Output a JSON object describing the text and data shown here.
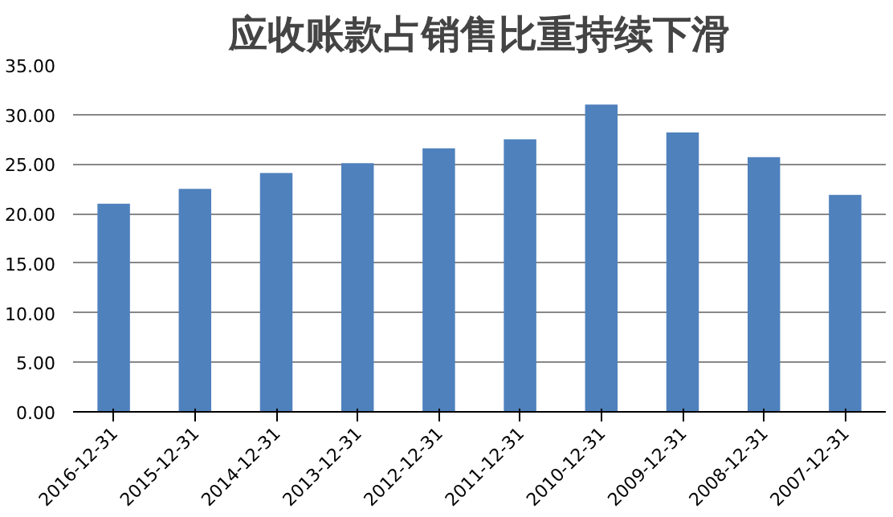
{
  "chart_data": {
    "type": "bar",
    "title": "应收账款占销售比重持续下滑",
    "categories": [
      "2016-12-31",
      "2015-12-31",
      "2014-12-31",
      "2013-12-31",
      "2012-12-31",
      "2011-12-31",
      "2010-12-31",
      "2009-12-31",
      "2008-12-31",
      "2007-12-31"
    ],
    "values": [
      21.0,
      22.5,
      24.1,
      25.1,
      26.6,
      27.5,
      31.0,
      28.2,
      25.7,
      21.9
    ],
    "color": "#4f81bd",
    "ylim": [
      0,
      35
    ],
    "yticks": [
      {
        "value": 0,
        "label": "0.00"
      },
      {
        "value": 5,
        "label": "5.00"
      },
      {
        "value": 10,
        "label": "10.00"
      },
      {
        "value": 15,
        "label": "15.00"
      },
      {
        "value": 20,
        "label": "20.00"
      },
      {
        "value": 25,
        "label": "25.00"
      },
      {
        "value": 30,
        "label": "30.00"
      },
      {
        "value": 35,
        "label": "35.00"
      }
    ],
    "grid": "y"
  }
}
